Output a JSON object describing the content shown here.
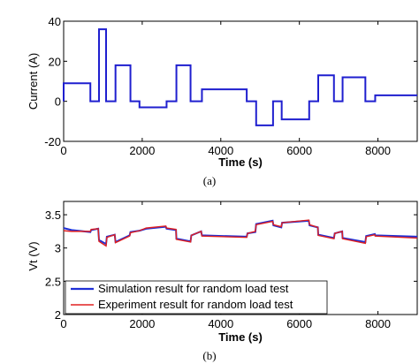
{
  "chart_data": [
    {
      "type": "line",
      "panel_label": "(a)",
      "xlabel": "Time (s)",
      "ylabel": "Current (A)",
      "xlim": [
        0,
        9000
      ],
      "ylim": [
        -20,
        40
      ],
      "xticks": [
        0,
        2000,
        4000,
        6000,
        8000
      ],
      "yticks": [
        -20,
        0,
        20,
        40
      ],
      "xtick_labels": [
        "0",
        "2000",
        "4000",
        "6000",
        "8000"
      ],
      "ytick_labels": [
        "-20",
        "0",
        "20",
        "40"
      ],
      "grid": false,
      "legend": null,
      "series": [
        {
          "color": "#1f1fcf",
          "style": "step",
          "points": [
            [
              0,
              0
            ],
            [
              0,
              9
            ],
            [
              680,
              9
            ],
            [
              680,
              0
            ],
            [
              900,
              0
            ],
            [
              900,
              36
            ],
            [
              1080,
              36
            ],
            [
              1080,
              0
            ],
            [
              1320,
              0
            ],
            [
              1320,
              18
            ],
            [
              1700,
              18
            ],
            [
              1700,
              0
            ],
            [
              1930,
              0
            ],
            [
              1930,
              -3
            ],
            [
              2620,
              -3
            ],
            [
              2620,
              0
            ],
            [
              2870,
              0
            ],
            [
              2870,
              18
            ],
            [
              3230,
              18
            ],
            [
              3230,
              0
            ],
            [
              3520,
              0
            ],
            [
              3520,
              6
            ],
            [
              4660,
              6
            ],
            [
              4660,
              0
            ],
            [
              4900,
              0
            ],
            [
              4900,
              -12
            ],
            [
              5330,
              -12
            ],
            [
              5330,
              0
            ],
            [
              5550,
              0
            ],
            [
              5550,
              -9
            ],
            [
              6250,
              -9
            ],
            [
              6250,
              0
            ],
            [
              6480,
              0
            ],
            [
              6480,
              13
            ],
            [
              6880,
              13
            ],
            [
              6880,
              0
            ],
            [
              7100,
              0
            ],
            [
              7100,
              12
            ],
            [
              7680,
              12
            ],
            [
              7680,
              0
            ],
            [
              7930,
              0
            ],
            [
              7930,
              3
            ],
            [
              9000,
              3
            ]
          ]
        }
      ]
    },
    {
      "type": "line",
      "panel_label": "(b)",
      "xlabel": "Time (s)",
      "ylabel": "Vt (V)",
      "xlim": [
        0,
        9000
      ],
      "ylim": [
        2,
        3.7
      ],
      "xticks": [
        0,
        2000,
        4000,
        6000,
        8000
      ],
      "yticks": [
        2,
        2.5,
        3,
        3.5
      ],
      "xtick_labels": [
        "0",
        "2000",
        "4000",
        "6000",
        "8000"
      ],
      "ytick_labels": [
        "2",
        "2.5",
        "3",
        "3.5"
      ],
      "grid": false,
      "legend": "bottom-left",
      "series": [
        {
          "name": "Simulation result for random load test",
          "color": "#1f2fd6",
          "points": [
            [
              0,
              3.3
            ],
            [
              200,
              3.27
            ],
            [
              680,
              3.24
            ],
            [
              700,
              3.27
            ],
            [
              880,
              3.29
            ],
            [
              900,
              3.12
            ],
            [
              1080,
              3.06
            ],
            [
              1100,
              3.17
            ],
            [
              1300,
              3.2
            ],
            [
              1320,
              3.09
            ],
            [
              1680,
              3.19
            ],
            [
              1700,
              3.24
            ],
            [
              1930,
              3.26
            ],
            [
              2100,
              3.29
            ],
            [
              2600,
              3.32
            ],
            [
              2620,
              3.29
            ],
            [
              2860,
              3.27
            ],
            [
              2870,
              3.14
            ],
            [
              3230,
              3.1
            ],
            [
              3250,
              3.19
            ],
            [
              3500,
              3.25
            ],
            [
              3520,
              3.19
            ],
            [
              4660,
              3.17
            ],
            [
              4680,
              3.22
            ],
            [
              4880,
              3.24
            ],
            [
              4900,
              3.36
            ],
            [
              5320,
              3.41
            ],
            [
              5340,
              3.34
            ],
            [
              5540,
              3.31
            ],
            [
              5560,
              3.38
            ],
            [
              6240,
              3.41
            ],
            [
              6260,
              3.34
            ],
            [
              6470,
              3.31
            ],
            [
              6480,
              3.2
            ],
            [
              6880,
              3.15
            ],
            [
              6900,
              3.22
            ],
            [
              7090,
              3.25
            ],
            [
              7100,
              3.15
            ],
            [
              7680,
              3.09
            ],
            [
              7700,
              3.18
            ],
            [
              7920,
              3.21
            ],
            [
              7930,
              3.19
            ],
            [
              9000,
              3.17
            ]
          ]
        },
        {
          "name": "Experiment result for random load test",
          "color": "#e02020",
          "points": [
            [
              0,
              3.26
            ],
            [
              200,
              3.25
            ],
            [
              680,
              3.25
            ],
            [
              700,
              3.28
            ],
            [
              880,
              3.29
            ],
            [
              900,
              3.1
            ],
            [
              1080,
              3.03
            ],
            [
              1100,
              3.16
            ],
            [
              1300,
              3.2
            ],
            [
              1320,
              3.08
            ],
            [
              1680,
              3.18
            ],
            [
              1700,
              3.23
            ],
            [
              1930,
              3.26
            ],
            [
              2100,
              3.3
            ],
            [
              2600,
              3.33
            ],
            [
              2620,
              3.3
            ],
            [
              2860,
              3.28
            ],
            [
              2870,
              3.13
            ],
            [
              3230,
              3.09
            ],
            [
              3250,
              3.19
            ],
            [
              3500,
              3.25
            ],
            [
              3520,
              3.18
            ],
            [
              4660,
              3.16
            ],
            [
              4680,
              3.22
            ],
            [
              4880,
              3.25
            ],
            [
              4900,
              3.35
            ],
            [
              5320,
              3.4
            ],
            [
              5340,
              3.35
            ],
            [
              5540,
              3.32
            ],
            [
              5560,
              3.38
            ],
            [
              6240,
              3.42
            ],
            [
              6260,
              3.35
            ],
            [
              6470,
              3.31
            ],
            [
              6480,
              3.19
            ],
            [
              6880,
              3.14
            ],
            [
              6900,
              3.22
            ],
            [
              7090,
              3.25
            ],
            [
              7100,
              3.14
            ],
            [
              7680,
              3.07
            ],
            [
              7700,
              3.17
            ],
            [
              7920,
              3.2
            ],
            [
              7930,
              3.18
            ],
            [
              9000,
              3.15
            ]
          ]
        }
      ]
    }
  ]
}
